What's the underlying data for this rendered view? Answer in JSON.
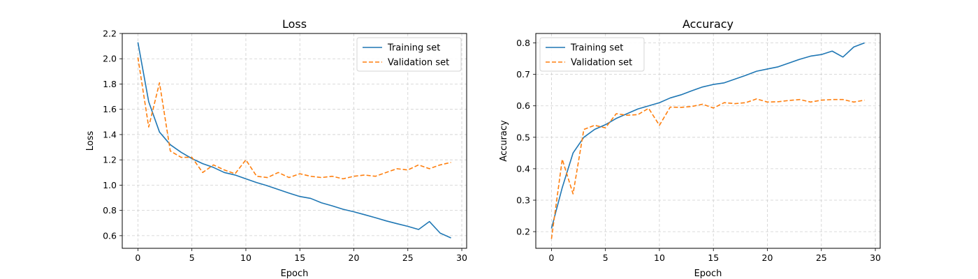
{
  "chart_data": [
    {
      "type": "line",
      "title": "Loss",
      "xlabel": "Epoch",
      "ylabel": "Loss",
      "xlim": [
        -1.45,
        30.45
      ],
      "ylim": [
        0.5,
        2.2
      ],
      "xticks": [
        0,
        5,
        10,
        15,
        20,
        25,
        30
      ],
      "yticks": [
        0.6,
        0.8,
        1.0,
        1.2,
        1.4,
        1.6,
        1.8,
        2.0,
        2.2
      ],
      "ytick_decimals": 1,
      "grid": true,
      "legend_position": "upper right",
      "x": [
        0,
        1,
        2,
        3,
        4,
        5,
        6,
        7,
        8,
        9,
        10,
        11,
        12,
        13,
        14,
        15,
        16,
        17,
        18,
        19,
        20,
        21,
        22,
        23,
        24,
        25,
        26,
        27,
        28,
        29
      ],
      "series": [
        {
          "name": "Training set",
          "color": "#1f77b4",
          "style": "solid",
          "values": [
            2.13,
            1.66,
            1.42,
            1.32,
            1.26,
            1.21,
            1.17,
            1.14,
            1.1,
            1.08,
            1.05,
            1.02,
            0.995,
            0.966,
            0.937,
            0.91,
            0.895,
            0.86,
            0.836,
            0.809,
            0.789,
            0.766,
            0.742,
            0.717,
            0.695,
            0.674,
            0.649,
            0.712,
            0.62,
            0.582
          ]
        },
        {
          "name": "Validation set",
          "color": "#ff7f0e",
          "style": "dashed",
          "values": [
            2.01,
            1.46,
            1.81,
            1.27,
            1.22,
            1.22,
            1.1,
            1.16,
            1.12,
            1.09,
            1.2,
            1.07,
            1.06,
            1.1,
            1.06,
            1.09,
            1.07,
            1.06,
            1.07,
            1.05,
            1.07,
            1.08,
            1.07,
            1.1,
            1.13,
            1.12,
            1.16,
            1.13,
            1.16,
            1.18
          ]
        }
      ]
    },
    {
      "type": "line",
      "title": "Accuracy",
      "xlabel": "Epoch",
      "ylabel": "Accuracy",
      "xlim": [
        -1.45,
        30.45
      ],
      "ylim": [
        0.147,
        0.83
      ],
      "xticks": [
        0,
        5,
        10,
        15,
        20,
        25,
        30
      ],
      "yticks": [
        0.2,
        0.3,
        0.4,
        0.5,
        0.6,
        0.7,
        0.8
      ],
      "ytick_decimals": 1,
      "grid": true,
      "legend_position": "upper left",
      "x": [
        0,
        1,
        2,
        3,
        4,
        5,
        6,
        7,
        8,
        9,
        10,
        11,
        12,
        13,
        14,
        15,
        16,
        17,
        18,
        19,
        20,
        21,
        22,
        23,
        24,
        25,
        26,
        27,
        28,
        29
      ],
      "series": [
        {
          "name": "Training set",
          "color": "#1f77b4",
          "style": "solid",
          "values": [
            0.21,
            0.34,
            0.45,
            0.5,
            0.525,
            0.54,
            0.56,
            0.575,
            0.59,
            0.6,
            0.61,
            0.625,
            0.635,
            0.648,
            0.66,
            0.668,
            0.673,
            0.685,
            0.697,
            0.71,
            0.717,
            0.724,
            0.736,
            0.748,
            0.758,
            0.763,
            0.774,
            0.755,
            0.787,
            0.8
          ]
        },
        {
          "name": "Validation set",
          "color": "#ff7f0e",
          "style": "dashed",
          "values": [
            0.177,
            0.43,
            0.32,
            0.525,
            0.538,
            0.53,
            0.575,
            0.57,
            0.572,
            0.592,
            0.538,
            0.596,
            0.595,
            0.598,
            0.605,
            0.593,
            0.61,
            0.607,
            0.61,
            0.622,
            0.612,
            0.613,
            0.617,
            0.62,
            0.612,
            0.618,
            0.62,
            0.62,
            0.612,
            0.618
          ]
        }
      ]
    }
  ]
}
